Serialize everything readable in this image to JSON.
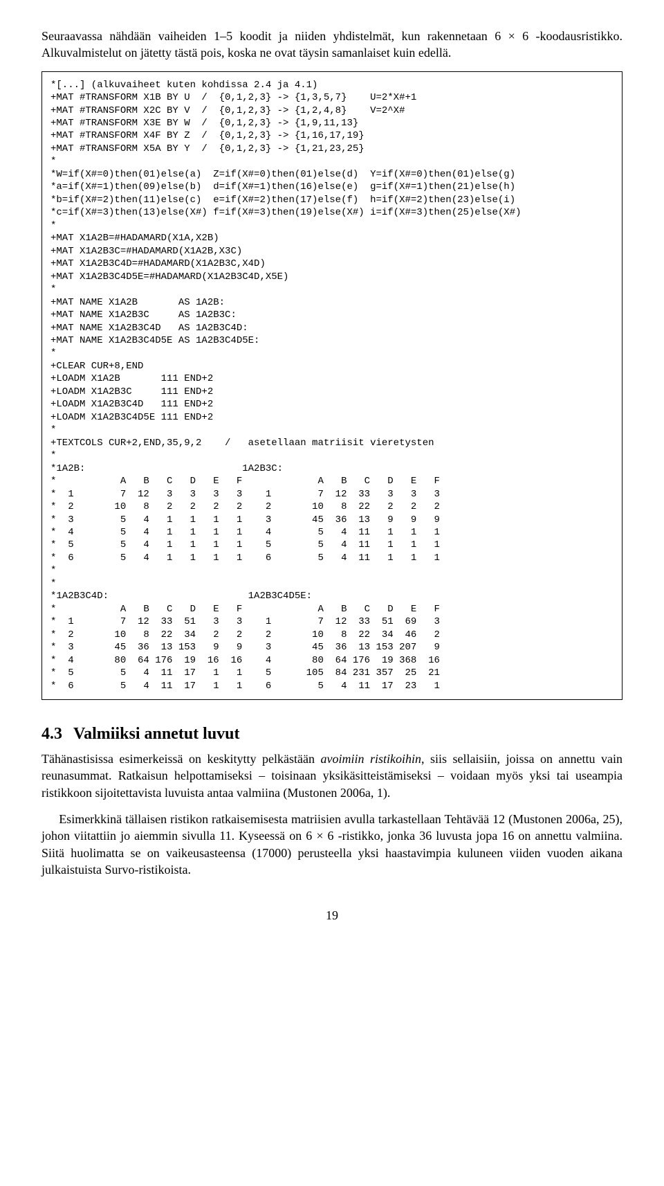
{
  "intro_para": "Seuraavassa nähdään vaiheiden 1–5 koodit ja niiden yhdistelmät, kun rakennetaan 6 × 6 -koodausristikko. Alkuvalmistelut on jätetty tästä pois, koska ne ovat täysin samanlaiset kuin edellä.",
  "code_block": "*[...] (alkuvaiheet kuten kohdissa 2.4 ja 4.1)\n+MAT #TRANSFORM X1B BY U  /  {0,1,2,3} -> {1,3,5,7}    U=2*X#+1\n+MAT #TRANSFORM X2C BY V  /  {0,1,2,3} -> {1,2,4,8}    V=2^X#\n+MAT #TRANSFORM X3E BY W  /  {0,1,2,3} -> {1,9,11,13}\n+MAT #TRANSFORM X4F BY Z  /  {0,1,2,3} -> {1,16,17,19}\n+MAT #TRANSFORM X5A BY Y  /  {0,1,2,3} -> {1,21,23,25}\n*\n*W=if(X#=0)then(01)else(a)  Z=if(X#=0)then(01)else(d)  Y=if(X#=0)then(01)else(g)\n*a=if(X#=1)then(09)else(b)  d=if(X#=1)then(16)else(e)  g=if(X#=1)then(21)else(h)\n*b=if(X#=2)then(11)else(c)  e=if(X#=2)then(17)else(f)  h=if(X#=2)then(23)else(i)\n*c=if(X#=3)then(13)else(X#) f=if(X#=3)then(19)else(X#) i=if(X#=3)then(25)else(X#)\n*\n+MAT X1A2B=#HADAMARD(X1A,X2B)\n+MAT X1A2B3C=#HADAMARD(X1A2B,X3C)\n+MAT X1A2B3C4D=#HADAMARD(X1A2B3C,X4D)\n+MAT X1A2B3C4D5E=#HADAMARD(X1A2B3C4D,X5E)\n*\n+MAT NAME X1A2B       AS 1A2B:\n+MAT NAME X1A2B3C     AS 1A2B3C:\n+MAT NAME X1A2B3C4D   AS 1A2B3C4D:\n+MAT NAME X1A2B3C4D5E AS 1A2B3C4D5E:\n*\n+CLEAR CUR+8,END\n+LOADM X1A2B       111 END+2\n+LOADM X1A2B3C     111 END+2\n+LOADM X1A2B3C4D   111 END+2\n+LOADM X1A2B3C4D5E 111 END+2\n*\n+TEXTCOLS CUR+2,END,35,9,2    /   asetellaan matriisit vieretysten\n*\n*1A2B:                           1A2B3C:\n*           A   B   C   D   E   F             A   B   C   D   E   F\n*  1        7  12   3   3   3   3    1        7  12  33   3   3   3\n*  2       10   8   2   2   2   2    2       10   8  22   2   2   2\n*  3        5   4   1   1   1   1    3       45  36  13   9   9   9\n*  4        5   4   1   1   1   1    4        5   4  11   1   1   1\n*  5        5   4   1   1   1   1    5        5   4  11   1   1   1\n*  6        5   4   1   1   1   1    6        5   4  11   1   1   1\n*\n*\n*1A2B3C4D:                        1A2B3C4D5E:\n*           A   B   C   D   E   F             A   B   C   D   E   F\n*  1        7  12  33  51   3   3    1        7  12  33  51  69   3\n*  2       10   8  22  34   2   2    2       10   8  22  34  46   2\n*  3       45  36  13 153   9   9    3       45  36  13 153 207   9\n*  4       80  64 176  19  16  16    4       80  64 176  19 368  16\n*  5        5   4  11  17   1   1    5      105  84 231 357  25  21\n*  6        5   4  11  17   1   1    6        5   4  11  17  23   1",
  "section_number": "4.3",
  "section_title": "Valmiiksi annetut luvut",
  "para1_a": "Tähänastisissa esimerkeissä on keskitytty pelkästään ",
  "para1_italic": "avoimiin ristikoihin",
  "para1_b": ", siis sellaisiin, joissa on annettu vain reunasummat. Ratkaisun helpottamiseksi – toisinaan yksikäsitteistämiseksi – voidaan myös yksi tai useampia ristikkoon sijoitettavista luvuista antaa valmiina (Mustonen 2006a, 1).",
  "para2": "Esimerkkinä tällaisen ristikon ratkaisemisesta matriisien avulla tarkastellaan Tehtävää 12 (Mustonen 2006a, 25), johon viitattiin jo aiemmin sivulla 11. Kyseessä on 6 × 6 -ristikko, jonka 36 luvusta jopa 16 on annettu valmiina. Siitä huolimatta se on vaikeusasteensa (17000) perusteella yksi haastavimpia kuluneen viiden vuoden aikana julkaistuista Survo-ristikoista.",
  "page_number": "19"
}
